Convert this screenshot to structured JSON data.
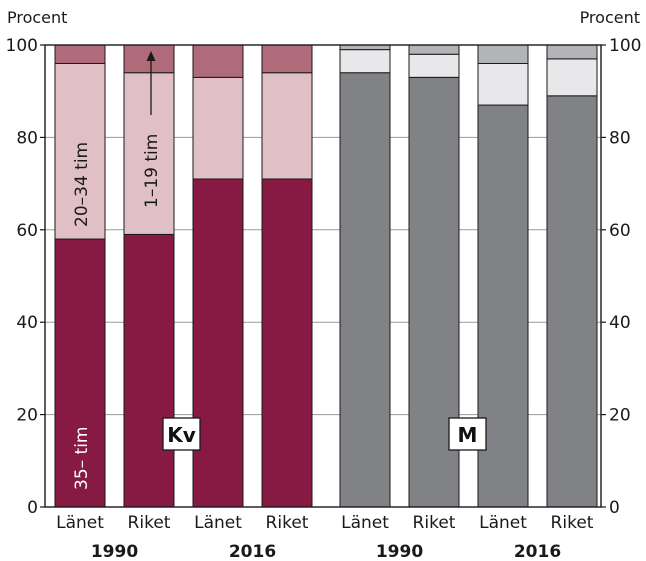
{
  "chart_data": {
    "type": "bar",
    "stacked": true,
    "ylabel_left": "Procent",
    "ylabel_right": "Procent",
    "ylim": [
      0,
      100
    ],
    "yticks": [
      0,
      20,
      40,
      60,
      80,
      100
    ],
    "categories": [
      "Länet",
      "Riket",
      "Länet",
      "Riket",
      "Länet",
      "Riket",
      "Länet",
      "Riket"
    ],
    "groups": [
      {
        "label": "1990"
      },
      {
        "label": "2016"
      },
      {
        "label": "1990"
      },
      {
        "label": "2016"
      }
    ],
    "panels": [
      {
        "label": "Kv"
      },
      {
        "label": "M"
      }
    ],
    "series": [
      {
        "values": [
          58,
          59,
          71,
          71,
          94,
          93,
          87,
          89
        ]
      },
      {
        "values": [
          38,
          35,
          22,
          23,
          5,
          5,
          9,
          8
        ]
      },
      {
        "values": [
          4,
          6,
          7,
          6,
          1,
          2,
          4,
          3
        ]
      }
    ],
    "annotations": {
      "bottom_segment": "35– tim",
      "middle_segment": "20–34 tim",
      "top_segment": "1–19 tim"
    },
    "colors": {
      "women": [
        "#871a42",
        "#e0c0c6",
        "#b06b7a"
      ],
      "men": [
        "#818286",
        "#e8e8ea",
        "#b3b4b7"
      ]
    },
    "gridlines": true
  }
}
